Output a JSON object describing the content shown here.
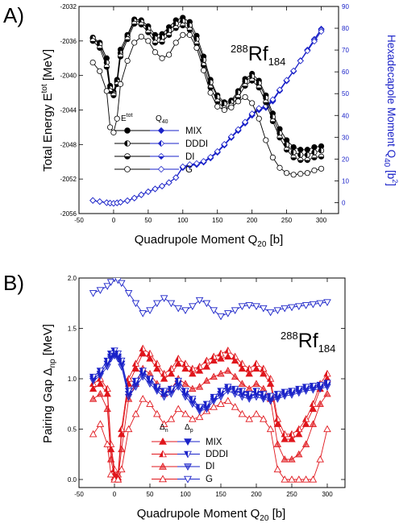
{
  "chart_data": [
    {
      "type": "line",
      "panel_label": "A)",
      "nucleus": {
        "mass": "288",
        "symbol": "Rf",
        "neutrons": "184"
      },
      "xlabel": {
        "main": "Quadrupole Moment Q",
        "sub": "20",
        "unit": " [b]"
      },
      "ylabel_left": {
        "main": "Total Energy E",
        "sup": "tot",
        "unit": " [MeV]"
      },
      "ylabel_right": {
        "main": "Hexadecapole Moment Q",
        "sub": "40",
        "unit": " [b",
        "sup": "2",
        "end": "]"
      },
      "xlim": [
        -50,
        325
      ],
      "ylim_left": [
        -2056,
        -2032
      ],
      "ylim_right": [
        -5,
        90
      ],
      "x_ticks": [
        -50,
        0,
        50,
        100,
        150,
        200,
        250,
        300
      ],
      "y_ticks_left": [
        -2056,
        -2052,
        -2048,
        -2044,
        -2040,
        -2036,
        -2032
      ],
      "y_ticks_right": [
        0,
        10,
        20,
        30,
        40,
        50,
        60,
        70,
        80,
        90
      ],
      "legend": {
        "header_left": "tot",
        "header_left_base": "E",
        "header_right_base": "Q",
        "header_right_sub": "40",
        "entries": [
          "MIX",
          "DDDI",
          "DI",
          "G"
        ]
      },
      "x": [
        -30,
        -20,
        -10,
        -5,
        0,
        5,
        10,
        20,
        30,
        40,
        50,
        60,
        70,
        80,
        90,
        100,
        110,
        120,
        130,
        140,
        150,
        160,
        170,
        180,
        190,
        200,
        210,
        220,
        230,
        240,
        250,
        260,
        270,
        280,
        290,
        300
      ],
      "energy_series": [
        {
          "name": "MIX",
          "marker": "full",
          "values": [
            -2035.6,
            -2036.2,
            -2038.0,
            -2041.2,
            -2041.9,
            -2040.5,
            -2037.0,
            -2035.3,
            -2033.5,
            -2033.6,
            -2034.3,
            -2035.3,
            -2035.2,
            -2034.4,
            -2033.6,
            -2033.3,
            -2033.8,
            -2035.4,
            -2037.8,
            -2040.5,
            -2042.3,
            -2043.1,
            -2042.9,
            -2041.8,
            -2040.4,
            -2039.8,
            -2040.6,
            -2042.3,
            -2044.4,
            -2046.2,
            -2047.5,
            -2048.3,
            -2048.6,
            -2048.6,
            -2048.3,
            -2048.2
          ]
        },
        {
          "name": "DDDI",
          "marker": "half-left",
          "values": [
            -2035.7,
            -2036.4,
            -2038.5,
            -2041.5,
            -2042.1,
            -2040.7,
            -2037.4,
            -2035.5,
            -2033.7,
            -2033.8,
            -2034.6,
            -2035.7,
            -2035.6,
            -2034.8,
            -2034.0,
            -2033.7,
            -2034.2,
            -2035.8,
            -2038.2,
            -2040.8,
            -2042.5,
            -2043.3,
            -2043.1,
            -2042.0,
            -2040.7,
            -2040.1,
            -2040.9,
            -2042.6,
            -2044.8,
            -2046.7,
            -2048.0,
            -2048.9,
            -2049.2,
            -2049.2,
            -2048.9,
            -2048.7
          ]
        },
        {
          "name": "DI",
          "marker": "half-bottom",
          "values": [
            -2036.0,
            -2036.8,
            -2039.0,
            -2041.8,
            -2042.3,
            -2041.0,
            -2037.8,
            -2035.8,
            -2034.0,
            -2034.1,
            -2035.0,
            -2036.2,
            -2036.1,
            -2035.3,
            -2034.5,
            -2034.2,
            -2034.7,
            -2036.3,
            -2038.8,
            -2041.4,
            -2043.0,
            -2043.8,
            -2043.5,
            -2042.5,
            -2041.2,
            -2040.6,
            -2041.4,
            -2043.1,
            -2045.3,
            -2047.2,
            -2048.6,
            -2049.5,
            -2049.8,
            -2049.8,
            -2049.5,
            -2049.4
          ]
        },
        {
          "name": "G",
          "marker": "open",
          "values": [
            -2038.5,
            -2039.5,
            -2041.8,
            -2046.0,
            -2046.6,
            -2045.0,
            -2041.0,
            -2038.3,
            -2036.2,
            -2035.5,
            -2036.0,
            -2037.3,
            -2038.0,
            -2037.6,
            -2036.2,
            -2035.3,
            -2035.3,
            -2036.8,
            -2039.4,
            -2042.0,
            -2043.6,
            -2044.0,
            -2043.7,
            -2043.0,
            -2042.5,
            -2043.2,
            -2045.0,
            -2047.5,
            -2049.5,
            -2050.7,
            -2051.3,
            -2051.5,
            -2051.4,
            -2051.3,
            -2051.0,
            -2050.8
          ]
        }
      ],
      "hexadecapole_series": [
        {
          "name": "MIX",
          "marker": "full",
          "values": [
            1.0,
            0.5,
            0.0,
            -0.2,
            -0.3,
            -0.1,
            0.2,
            0.9,
            2.1,
            3.6,
            5.0,
            6.3,
            7.6,
            9.2,
            11.5,
            16.0,
            17.0,
            17.4,
            18.5,
            20.4,
            23.0,
            26.3,
            29.8,
            33.0,
            36.4,
            40.0,
            42.5,
            43.5,
            46.5,
            51.3,
            55.8,
            60.2,
            65.0,
            70.1,
            75.0,
            79.7
          ]
        },
        {
          "name": "DDDI",
          "marker": "half-left",
          "values": [
            1.0,
            0.5,
            0.0,
            -0.2,
            -0.3,
            -0.1,
            0.2,
            0.9,
            2.1,
            3.6,
            5.0,
            6.3,
            7.6,
            9.2,
            11.5,
            16.2,
            17.2,
            17.6,
            18.7,
            20.6,
            23.2,
            26.5,
            30.0,
            33.2,
            36.6,
            40.3,
            42.8,
            43.8,
            46.8,
            51.5,
            56.0,
            60.3,
            65.1,
            70.0,
            74.8,
            79.5
          ]
        },
        {
          "name": "DI",
          "marker": "half-bottom",
          "values": [
            1.0,
            0.5,
            0.0,
            -0.2,
            -0.3,
            -0.1,
            0.2,
            0.9,
            2.1,
            3.6,
            5.0,
            6.3,
            7.6,
            9.2,
            11.5,
            16.3,
            17.3,
            17.8,
            18.8,
            20.7,
            23.3,
            26.6,
            30.1,
            33.4,
            36.8,
            40.5,
            43.0,
            44.0,
            47.0,
            51.6,
            56.1,
            60.4,
            65.2,
            70.0,
            74.6,
            79.2
          ]
        },
        {
          "name": "G",
          "marker": "open",
          "values": [
            1.0,
            0.5,
            0.0,
            -0.2,
            -0.3,
            -0.1,
            0.2,
            0.9,
            2.1,
            3.6,
            5.0,
            6.3,
            7.6,
            9.2,
            11.5,
            16.5,
            17.5,
            18.0,
            19.0,
            20.9,
            23.5,
            26.8,
            30.3,
            33.6,
            37.0,
            40.8,
            43.3,
            44.3,
            47.3,
            51.8,
            56.2,
            60.5,
            65.0,
            69.6,
            74.0,
            78.5
          ]
        }
      ]
    },
    {
      "type": "line",
      "panel_label": "B)",
      "nucleus": {
        "mass": "288",
        "symbol": "Rf",
        "neutrons": "184"
      },
      "xlabel": {
        "main": "Quadrupole Moment Q",
        "sub": "20",
        "unit": " [b]"
      },
      "ylabel": {
        "main": "Pairing Gap Δ",
        "sub": "np",
        "unit": " [MeV]"
      },
      "xlim": [
        -50,
        325
      ],
      "ylim": [
        -0.08,
        2.0
      ],
      "x_ticks": [
        -50,
        0,
        50,
        100,
        150,
        200,
        250,
        300
      ],
      "y_ticks": [
        0.0,
        0.5,
        1.0,
        1.5,
        2.0
      ],
      "y_tick_labels": [
        "0.0",
        "0.5",
        "1.0",
        "1.5",
        "2.0"
      ],
      "legend": {
        "header_n_base": "Δ",
        "header_n_sub": "n",
        "header_p_base": "Δ",
        "header_p_sub": "p",
        "entries": [
          "MIX",
          "DDDI",
          "DI",
          "G"
        ]
      },
      "x": [
        -30,
        -20,
        -10,
        -5,
        0,
        5,
        10,
        20,
        30,
        40,
        50,
        60,
        70,
        80,
        90,
        100,
        110,
        120,
        130,
        140,
        150,
        160,
        170,
        180,
        190,
        200,
        210,
        220,
        230,
        240,
        250,
        260,
        270,
        280,
        290,
        300
      ],
      "neutron_series": [
        {
          "name": "MIX",
          "marker": "full",
          "values": [
            0.9,
            0.95,
            0.85,
            0.3,
            0.05,
            0.02,
            0.45,
            0.95,
            1.1,
            1.25,
            1.2,
            1.1,
            1.0,
            1.05,
            1.15,
            1.1,
            1.05,
            1.08,
            1.12,
            1.18,
            1.2,
            1.22,
            1.18,
            1.1,
            1.05,
            1.1,
            1.05,
            0.95,
            0.55,
            0.4,
            0.4,
            0.45,
            0.55,
            0.7,
            0.9,
            1.0
          ]
        },
        {
          "name": "DDDI",
          "marker": "half-left",
          "values": [
            0.95,
            1.0,
            0.9,
            0.35,
            0.1,
            0.05,
            0.5,
            1.0,
            1.15,
            1.3,
            1.25,
            1.15,
            1.05,
            1.1,
            1.2,
            1.15,
            1.1,
            1.12,
            1.18,
            1.22,
            1.25,
            1.28,
            1.22,
            1.15,
            1.1,
            1.15,
            1.1,
            1.0,
            0.6,
            0.45,
            0.45,
            0.5,
            0.6,
            0.75,
            0.95,
            1.05
          ]
        },
        {
          "name": "DI",
          "marker": "half-bottom",
          "values": [
            0.8,
            0.85,
            0.7,
            0.2,
            0.02,
            0.0,
            0.3,
            0.8,
            0.95,
            1.1,
            1.05,
            0.95,
            0.85,
            0.9,
            1.0,
            0.95,
            0.9,
            0.92,
            0.98,
            1.02,
            1.05,
            1.08,
            1.02,
            0.95,
            0.9,
            0.95,
            0.9,
            0.8,
            0.35,
            0.2,
            0.2,
            0.25,
            0.35,
            0.55,
            0.75,
            0.85
          ]
        },
        {
          "name": "G",
          "marker": "open",
          "values": [
            0.45,
            0.55,
            0.35,
            0.05,
            0.0,
            0.0,
            0.1,
            0.5,
            0.65,
            0.8,
            0.75,
            0.65,
            0.55,
            0.6,
            0.7,
            0.65,
            0.6,
            0.62,
            0.68,
            0.72,
            0.75,
            0.78,
            0.72,
            0.65,
            0.6,
            0.65,
            0.6,
            0.5,
            0.1,
            0.0,
            0.0,
            0.0,
            0.0,
            0.0,
            0.2,
            0.5
          ]
        }
      ],
      "proton_series": [
        {
          "name": "MIX",
          "marker": "full",
          "values": [
            1.0,
            1.05,
            1.15,
            1.22,
            1.25,
            1.22,
            1.15,
            0.85,
            0.95,
            1.05,
            0.98,
            0.9,
            0.85,
            0.88,
            0.95,
            0.85,
            0.78,
            0.7,
            0.72,
            0.8,
            0.85,
            0.9,
            0.88,
            0.85,
            0.82,
            0.85,
            0.82,
            0.8,
            0.82,
            0.85,
            0.86,
            0.88,
            0.9,
            0.91,
            0.92,
            0.94
          ]
        },
        {
          "name": "DDDI",
          "marker": "half-left",
          "values": [
            1.02,
            1.08,
            1.18,
            1.25,
            1.28,
            1.25,
            1.18,
            0.88,
            0.98,
            1.08,
            1.0,
            0.92,
            0.88,
            0.9,
            0.98,
            0.88,
            0.8,
            0.72,
            0.75,
            0.82,
            0.88,
            0.92,
            0.9,
            0.88,
            0.85,
            0.88,
            0.85,
            0.83,
            0.85,
            0.87,
            0.88,
            0.9,
            0.92,
            0.93,
            0.94,
            0.96
          ]
        },
        {
          "name": "DI",
          "marker": "half-bottom",
          "values": [
            0.98,
            1.03,
            1.12,
            1.2,
            1.23,
            1.2,
            1.12,
            0.82,
            0.92,
            1.02,
            0.95,
            0.88,
            0.82,
            0.85,
            0.92,
            0.82,
            0.75,
            0.68,
            0.7,
            0.78,
            0.82,
            0.88,
            0.85,
            0.82,
            0.8,
            0.82,
            0.8,
            0.78,
            0.8,
            0.83,
            0.84,
            0.86,
            0.88,
            0.89,
            0.9,
            0.92
          ]
        },
        {
          "name": "G",
          "marker": "open",
          "values": [
            1.85,
            1.88,
            1.92,
            1.96,
            2.0,
            1.98,
            1.95,
            1.85,
            1.75,
            1.65,
            1.68,
            1.75,
            1.8,
            1.75,
            1.7,
            1.68,
            1.72,
            1.78,
            1.75,
            1.68,
            1.62,
            1.65,
            1.68,
            1.72,
            1.73,
            1.72,
            1.7,
            1.66,
            1.68,
            1.7,
            1.71,
            1.72,
            1.73,
            1.74,
            1.75,
            1.76
          ]
        }
      ]
    }
  ],
  "colors": {
    "axis": "#000000",
    "energy": "#000000",
    "hexadecapole": "#1a22c8",
    "neutron": "#e0161c",
    "proton": "#1a22c8",
    "right_axis": "#1a22c8"
  }
}
